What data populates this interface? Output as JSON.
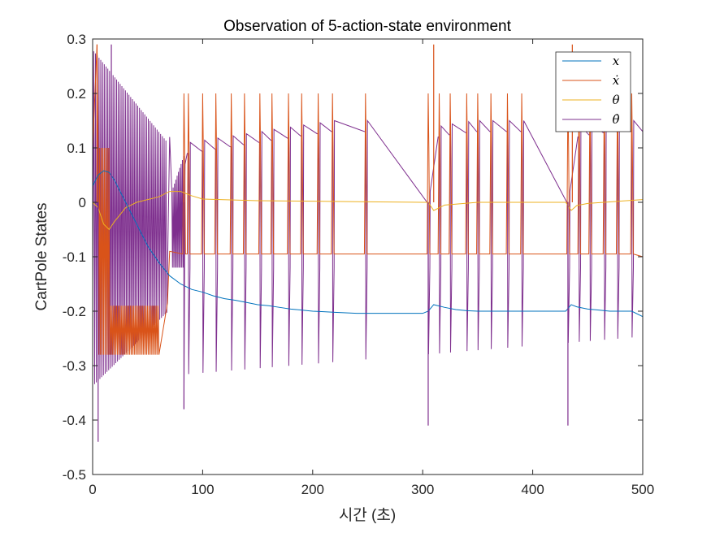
{
  "chart_data": {
    "type": "line",
    "title": "Observation of 5-action-state environment",
    "xlabel": "시간 (초)",
    "ylabel": "CartPole States",
    "xlim": [
      0,
      500
    ],
    "ylim": [
      -0.5,
      0.3
    ],
    "xticks": [
      0,
      100,
      200,
      300,
      400,
      500
    ],
    "yticks": [
      -0.5,
      -0.4,
      -0.3,
      -0.2,
      -0.1,
      0,
      0.1,
      0.2,
      0.3
    ],
    "xtick_labels": [
      "0",
      "100",
      "200",
      "300",
      "400",
      "500"
    ],
    "ytick_labels": [
      "-0.5",
      "-0.4",
      "-0.3",
      "-0.2",
      "-0.1",
      "0",
      "0.1",
      "0.2",
      "0.3"
    ],
    "grid": false,
    "legend_position": "top-right",
    "series": [
      {
        "name": "x",
        "legend_label": "x",
        "color": "#0072BD",
        "x": [
          0,
          5,
          10,
          15,
          20,
          30,
          40,
          50,
          60,
          70,
          80,
          90,
          100,
          110,
          120,
          130,
          140,
          150,
          160,
          170,
          180,
          190,
          200,
          210,
          220,
          230,
          240,
          250,
          260,
          270,
          280,
          290,
          300,
          305,
          310,
          320,
          330,
          340,
          350,
          360,
          370,
          380,
          390,
          400,
          410,
          420,
          430,
          435,
          440,
          450,
          460,
          470,
          480,
          490,
          500
        ],
        "y": [
          0.03,
          0.05,
          0.058,
          0.055,
          0.04,
          0.0,
          -0.04,
          -0.08,
          -0.11,
          -0.135,
          -0.15,
          -0.16,
          -0.165,
          -0.172,
          -0.177,
          -0.18,
          -0.184,
          -0.188,
          -0.19,
          -0.193,
          -0.196,
          -0.198,
          -0.2,
          -0.201,
          -0.202,
          -0.203,
          -0.204,
          -0.204,
          -0.204,
          -0.204,
          -0.204,
          -0.204,
          -0.204,
          -0.2,
          -0.188,
          -0.193,
          -0.197,
          -0.199,
          -0.2,
          -0.2,
          -0.2,
          -0.2,
          -0.2,
          -0.2,
          -0.2,
          -0.2,
          -0.2,
          -0.188,
          -0.192,
          -0.196,
          -0.198,
          -0.2,
          -0.2,
          -0.2,
          -0.21
        ]
      },
      {
        "name": "x_dot",
        "legend_label": "ẋ",
        "color": "#D95319",
        "low_level": -0.095,
        "high_level": 0.1,
        "spike_max": 0.2,
        "early_low": -0.28,
        "early_high": -0.19,
        "big_spikes": [
          {
            "x": 4,
            "y": 0.29
          },
          {
            "x": 310,
            "y": 0.29
          },
          {
            "x": 436,
            "y": 0.29
          }
        ],
        "pulse_times": [
          83,
          87,
          100,
          112,
          126,
          138,
          152,
          163,
          178,
          190,
          205,
          218,
          248,
          305,
          315,
          325,
          340,
          350,
          362,
          377,
          390,
          432,
          442,
          452,
          465,
          477,
          490
        ]
      },
      {
        "name": "theta",
        "legend_label": "θ",
        "color": "#EDB120",
        "x": [
          0,
          5,
          10,
          15,
          20,
          30,
          40,
          50,
          60,
          70,
          80,
          90,
          100,
          150,
          200,
          250,
          300,
          305,
          310,
          320,
          350,
          400,
          430,
          435,
          440,
          450,
          500
        ],
        "y": [
          0.0,
          -0.01,
          -0.04,
          -0.05,
          -0.035,
          -0.01,
          0.0,
          0.005,
          0.01,
          0.02,
          0.02,
          0.012,
          0.006,
          0.003,
          0.002,
          0.001,
          0.0,
          0.0,
          -0.015,
          -0.005,
          0.0,
          0.0,
          0.0,
          -0.015,
          -0.006,
          -0.002,
          0.005
        ]
      },
      {
        "name": "theta_dot",
        "legend_label": "θ̇",
        "color": "#7E2F8E",
        "upper_env": 0.13,
        "lower_env": -0.38,
        "spikes": [
          {
            "x": 5,
            "y": -0.44
          },
          {
            "x": 17,
            "y": 0.29
          },
          {
            "x": 83,
            "y": -0.38
          },
          {
            "x": 305,
            "y": -0.41
          },
          {
            "x": 432,
            "y": -0.41
          }
        ]
      }
    ]
  }
}
